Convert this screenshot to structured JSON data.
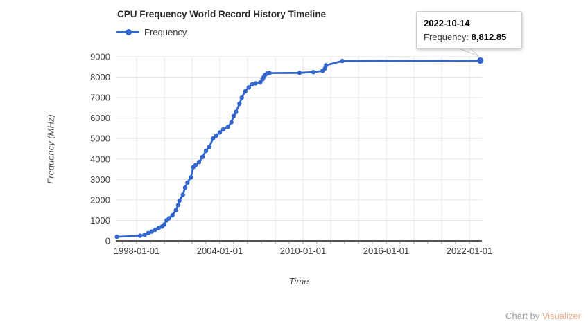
{
  "header": {
    "title": "CPU Frequency World Record History Timeline"
  },
  "legend": {
    "items": [
      {
        "label": "Frequency",
        "color": "#3366cc"
      }
    ]
  },
  "tooltip": {
    "date": "2022-10-14",
    "label": "Frequency:",
    "value": "8,812.85"
  },
  "attribution": {
    "prefix": "Chart by ",
    "link_text": "Visualizer"
  },
  "colors": {
    "series": "#3366cc",
    "gridline": "#e6e6e6",
    "baseline": "#555555",
    "minor_tick": "#9e9e9e",
    "tick_label": "#404040",
    "visualizer_link": "#f0ad83"
  },
  "chart_data": {
    "type": "line",
    "title": "CPU Frequency World Record History Timeline",
    "xlabel": "Time",
    "ylabel": "Frequency (MHz)",
    "legend_position": "top-left",
    "grid": true,
    "ylim": [
      0,
      9000
    ],
    "y_ticks": [
      0,
      1000,
      2000,
      3000,
      4000,
      5000,
      6000,
      7000,
      8000,
      9000
    ],
    "x_ticks": [
      "1998-01-01",
      "2004-01-01",
      "2010-01-01",
      "2016-01-01",
      "2022-01-01"
    ],
    "series": [
      {
        "name": "Frequency",
        "color": "#3366cc",
        "points": [
          [
            "1996-08-01",
            200
          ],
          [
            "1998-04-01",
            250
          ],
          [
            "1998-08-01",
            300
          ],
          [
            "1998-11-01",
            380
          ],
          [
            "1999-02-01",
            450
          ],
          [
            "1999-05-01",
            540
          ],
          [
            "1999-08-01",
            620
          ],
          [
            "1999-11-01",
            700
          ],
          [
            "2000-01-01",
            800
          ],
          [
            "2000-03-01",
            1000
          ],
          [
            "2000-05-01",
            1100
          ],
          [
            "2000-08-01",
            1250
          ],
          [
            "2000-11-01",
            1500
          ],
          [
            "2001-01-01",
            1750
          ],
          [
            "2001-02-01",
            1960
          ],
          [
            "2001-05-01",
            2250
          ],
          [
            "2001-07-01",
            2600
          ],
          [
            "2001-09-01",
            2850
          ],
          [
            "2001-12-01",
            3100
          ],
          [
            "2002-02-01",
            3600
          ],
          [
            "2002-04-01",
            3700
          ],
          [
            "2002-07-01",
            3850
          ],
          [
            "2002-10-01",
            4100
          ],
          [
            "2003-01-01",
            4400
          ],
          [
            "2003-04-01",
            4600
          ],
          [
            "2003-07-01",
            5000
          ],
          [
            "2003-10-01",
            5150
          ],
          [
            "2004-01-01",
            5300
          ],
          [
            "2004-04-01",
            5450
          ],
          [
            "2004-08-01",
            5570
          ],
          [
            "2004-11-01",
            5800
          ],
          [
            "2005-01-01",
            6100
          ],
          [
            "2005-03-01",
            6300
          ],
          [
            "2005-06-01",
            6700
          ],
          [
            "2005-08-01",
            7000
          ],
          [
            "2005-11-01",
            7300
          ],
          [
            "2006-02-01",
            7500
          ],
          [
            "2006-05-01",
            7650
          ],
          [
            "2006-08-01",
            7700
          ],
          [
            "2006-12-01",
            7740
          ],
          [
            "2007-02-01",
            7900
          ],
          [
            "2007-03-01",
            8000
          ],
          [
            "2007-04-01",
            8100
          ],
          [
            "2007-06-01",
            8180
          ],
          [
            "2007-08-01",
            8200
          ],
          [
            "2009-10-01",
            8210
          ],
          [
            "2010-10-01",
            8250
          ],
          [
            "2011-06-01",
            8309
          ],
          [
            "2011-08-01",
            8429
          ],
          [
            "2011-09-01",
            8584
          ],
          [
            "2012-11-01",
            8794
          ],
          [
            "2022-10-14",
            8812.85
          ]
        ]
      }
    ],
    "selected_point": {
      "date": "2022-10-14",
      "value": 8812.85
    }
  }
}
